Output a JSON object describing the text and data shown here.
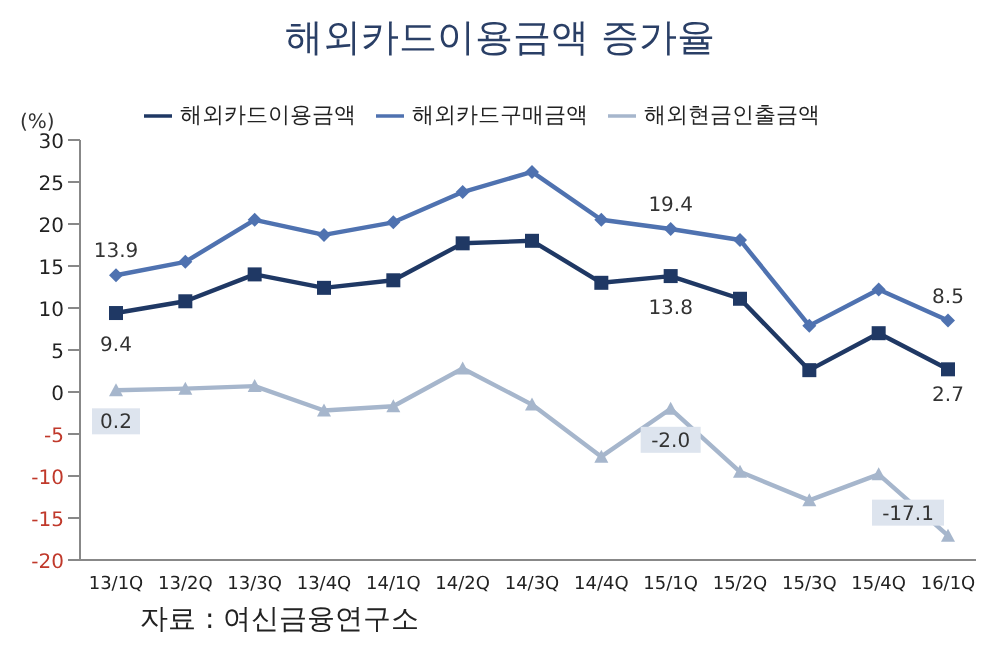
{
  "chart_data": {
    "type": "line",
    "title": "해외카드이용금액 증가율",
    "ylabel": "(%)",
    "categories": [
      "13/1Q",
      "13/2Q",
      "13/3Q",
      "13/4Q",
      "14/1Q",
      "14/2Q",
      "14/3Q",
      "14/4Q",
      "15/1Q",
      "15/2Q",
      "15/3Q",
      "15/4Q",
      "16/1Q"
    ],
    "series": [
      {
        "name": "해외카드이용금액",
        "color": "#1f3864",
        "marker": "square",
        "values": [
          9.4,
          10.8,
          14,
          12.4,
          13.3,
          17.7,
          18,
          13,
          13.8,
          11.1,
          2.6,
          7,
          2.7
        ],
        "value_labels": [
          "9.4",
          null,
          null,
          null,
          null,
          null,
          null,
          null,
          "13.8",
          null,
          null,
          null,
          "2.7"
        ]
      },
      {
        "name": "해외카드구매금액",
        "color": "#4f72b0",
        "marker": "diamond",
        "values": [
          13.9,
          15.5,
          20.5,
          18.7,
          20.2,
          23.8,
          26.2,
          20.5,
          19.4,
          18.1,
          7.9,
          12.2,
          8.5
        ],
        "value_labels": [
          "13.9",
          null,
          null,
          null,
          null,
          null,
          null,
          null,
          "19.4",
          null,
          null,
          null,
          "8.5"
        ]
      },
      {
        "name": "해외현금인출금액",
        "color": "#a6b6cc",
        "marker": "triangle",
        "values": [
          0.2,
          0.4,
          0.7,
          -2.2,
          -1.7,
          2.8,
          -1.5,
          -7.7,
          -2.0,
          -9.5,
          -12.9,
          -9.8,
          -17.1
        ],
        "value_labels": [
          "0.2",
          null,
          null,
          null,
          null,
          null,
          null,
          null,
          "-2.0",
          null,
          null,
          null,
          "-17.1"
        ]
      }
    ],
    "ylim": [
      -20,
      30
    ],
    "yticks": [
      -20,
      -15,
      -10,
      -5,
      0,
      5,
      10,
      15,
      20,
      25,
      30
    ],
    "grid": false,
    "legend": "top",
    "annotations": [
      "자료 : 여신금융연구소"
    ]
  }
}
